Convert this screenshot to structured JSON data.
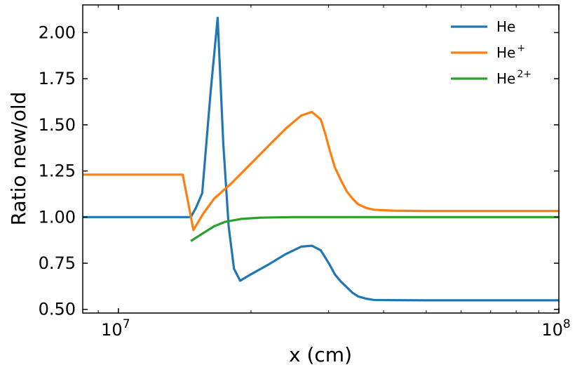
{
  "chart_data": {
    "type": "line",
    "xlabel": "x (cm)",
    "ylabel": "Ratio new/old",
    "xscale": "log",
    "xlim": [
      8300000,
      100000000
    ],
    "ylim": [
      0.48,
      2.15
    ],
    "legend_position": "top-right",
    "grid": false,
    "yticks": [
      {
        "value": 0.5,
        "label": "0.50"
      },
      {
        "value": 0.75,
        "label": "0.75"
      },
      {
        "value": 1.0,
        "label": "1.00"
      },
      {
        "value": 1.25,
        "label": "1.25"
      },
      {
        "value": 1.5,
        "label": "1.50"
      },
      {
        "value": 1.75,
        "label": "1.75"
      },
      {
        "value": 2.0,
        "label": "2.00"
      }
    ],
    "xticks": [
      {
        "value": 10000000,
        "base": "10",
        "exp": "7"
      },
      {
        "value": 100000000,
        "base": "10",
        "exp": "8"
      }
    ],
    "series": [
      {
        "name": "He",
        "name_base": "He",
        "name_sup": "",
        "color": "#1f77b4",
        "x": [
          8300000,
          14600000,
          15000000,
          15500000,
          16200000,
          16800000,
          17300000,
          17800000,
          18300000,
          18900000,
          20000000,
          22000000,
          24000000,
          26000000,
          27500000,
          28800000,
          29500000,
          30200000,
          31000000,
          32000000,
          33000000,
          34000000,
          35000000,
          36500000,
          38000000,
          42000000,
          50000000,
          70000000,
          100000000
        ],
        "y": [
          1.0,
          1.0,
          1.05,
          1.13,
          1.68,
          2.08,
          1.4,
          0.95,
          0.72,
          0.655,
          0.69,
          0.745,
          0.8,
          0.84,
          0.845,
          0.82,
          0.78,
          0.74,
          0.69,
          0.65,
          0.62,
          0.59,
          0.57,
          0.558,
          0.551,
          0.55,
          0.549,
          0.549,
          0.549
        ]
      },
      {
        "name": "He+",
        "name_base": "He",
        "name_sup": "+",
        "color": "#ff7f0e",
        "x": [
          8300000,
          14000000,
          14400000,
          14800000,
          15600000,
          16500000,
          18000000,
          20000000,
          22000000,
          24000000,
          26000000,
          27500000,
          28800000,
          29500000,
          30200000,
          31000000,
          32000000,
          33000000,
          34000000,
          35000000,
          36500000,
          38000000,
          42000000,
          50000000,
          70000000,
          100000000
        ],
        "y": [
          1.23,
          1.23,
          1.08,
          0.93,
          1.02,
          1.1,
          1.18,
          1.29,
          1.39,
          1.48,
          1.55,
          1.57,
          1.53,
          1.45,
          1.36,
          1.27,
          1.2,
          1.14,
          1.1,
          1.07,
          1.05,
          1.04,
          1.035,
          1.033,
          1.033,
          1.033
        ]
      },
      {
        "name": "He2+",
        "name_base": "He",
        "name_sup": "2+",
        "color": "#2ca02c",
        "x": [
          14600000,
          15500000,
          16500000,
          17500000,
          19000000,
          21000000,
          25000000,
          30000000,
          50000000,
          100000000
        ],
        "y": [
          0.87,
          0.91,
          0.95,
          0.975,
          0.99,
          0.997,
          1.0,
          1.0,
          1.0,
          1.0
        ]
      }
    ]
  }
}
